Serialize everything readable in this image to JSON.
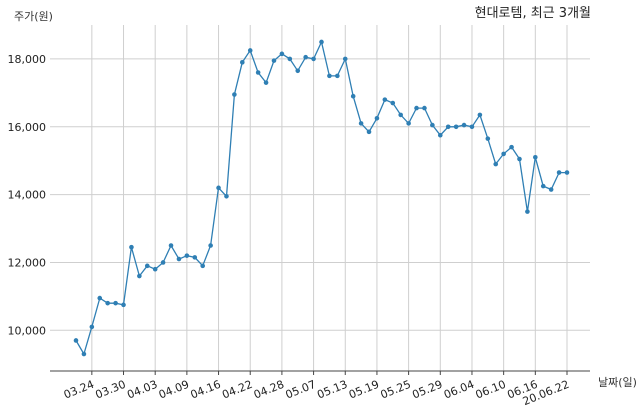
{
  "chart_data": {
    "type": "line",
    "title": "현대로템, 최근 3개월",
    "ylabel": "주가(원)",
    "xlabel": "날짜(일)",
    "ylim": [
      8800,
      19000
    ],
    "yticks": [
      10000,
      12000,
      14000,
      16000,
      18000
    ],
    "ytick_labels": [
      "10,000",
      "12,000",
      "14,000",
      "16,000",
      "18,000"
    ],
    "grid": true,
    "line_color": "#2f7fb4",
    "x": [
      "03.20",
      "03.23",
      "03.24",
      "03.25",
      "03.26",
      "03.27",
      "03.30",
      "03.31",
      "04.01",
      "04.02",
      "04.03",
      "04.06",
      "04.07",
      "04.08",
      "04.09",
      "04.10",
      "04.13",
      "04.14",
      "04.16",
      "04.17",
      "04.20",
      "04.21",
      "04.22",
      "04.23",
      "04.24",
      "04.27",
      "04.28",
      "04.29",
      "05.04",
      "05.06",
      "05.07",
      "05.08",
      "05.11",
      "05.12",
      "05.13",
      "05.14",
      "05.15",
      "05.18",
      "05.19",
      "05.20",
      "05.21",
      "05.22",
      "05.25",
      "05.26",
      "05.27",
      "05.28",
      "05.29",
      "06.01",
      "06.02",
      "06.03",
      "06.04",
      "06.05",
      "06.08",
      "06.09",
      "06.10",
      "06.11",
      "06.12",
      "06.15",
      "06.16",
      "06.17",
      "06.18",
      "06.19",
      "20.06.22"
    ],
    "values": [
      9700,
      9300,
      10100,
      10950,
      10800,
      10800,
      10750,
      12450,
      11600,
      11900,
      11800,
      12000,
      12500,
      12100,
      12200,
      12150,
      11900,
      12500,
      14200,
      13950,
      16950,
      17900,
      18250,
      17600,
      17300,
      17950,
      18150,
      18000,
      17650,
      18050,
      18000,
      18500,
      17500,
      17500,
      18000,
      16900,
      16100,
      15850,
      16250,
      16800,
      16700,
      16350,
      16100,
      16550,
      16550,
      16050,
      15750,
      16000,
      16000,
      16050,
      16000,
      16350,
      15650,
      14900,
      15200,
      15400,
      15050,
      13500,
      15100,
      14250,
      14150,
      14650,
      14650
    ],
    "xtick_labels": [
      "03.24",
      "03.30",
      "04.03",
      "04.09",
      "04.16",
      "04.22",
      "04.28",
      "05.07",
      "05.13",
      "05.19",
      "05.25",
      "05.29",
      "06.04",
      "06.10",
      "06.16",
      "20.06.22"
    ],
    "xtick_indices": [
      2,
      6,
      10,
      14,
      18,
      22,
      26,
      30,
      34,
      38,
      42,
      46,
      50,
      54,
      58,
      62
    ]
  }
}
